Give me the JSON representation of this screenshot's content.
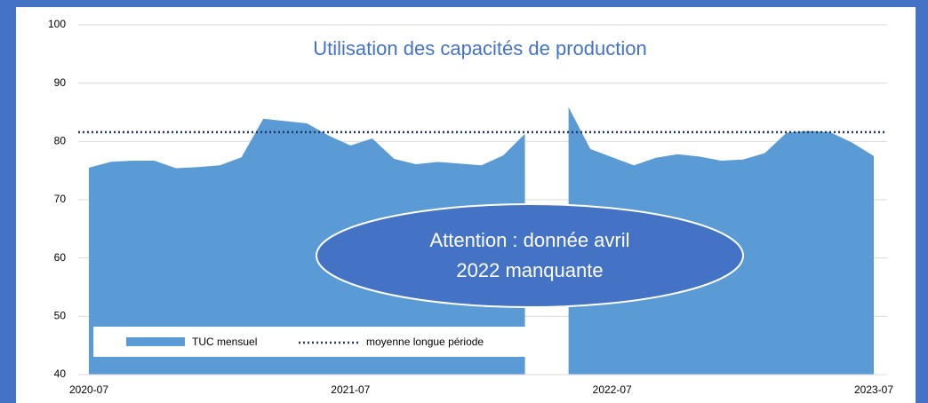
{
  "chart_data": {
    "type": "area",
    "title": "Utilisation des capacités de production",
    "categories": [
      "2020-07",
      null,
      null,
      null,
      null,
      null,
      null,
      null,
      null,
      null,
      null,
      null,
      "2021-07",
      null,
      null,
      null,
      null,
      null,
      null,
      null,
      null,
      null,
      null,
      null,
      "2022-07",
      null,
      null,
      null,
      null,
      null,
      null,
      null,
      null,
      null,
      null,
      null,
      "2023-07"
    ],
    "series": [
      {
        "name": "TUC mensuel",
        "color": "#5b9bd5",
        "values": [
          75.5,
          76.5,
          76.7,
          76.7,
          75.4,
          75.6,
          75.9,
          77.3,
          83.9,
          83.5,
          83.1,
          81.0,
          79.3,
          80.5,
          77.0,
          76.1,
          76.5,
          76.2,
          75.9,
          77.6,
          81.3,
          null,
          85.9,
          78.7,
          77.3,
          75.9,
          77.2,
          77.8,
          77.4,
          76.7,
          76.9,
          78.0,
          81.5,
          81.8,
          81.6,
          79.8,
          77.5
        ]
      }
    ],
    "reference_line": {
      "name": "moyenne longue période",
      "value": 81.6,
      "color": "#1f3864"
    },
    "annotation": "Attention : donnée avril 2022 manquante",
    "ylim": [
      40,
      100
    ],
    "yticks": [
      40,
      50,
      60,
      70,
      80,
      90,
      100
    ],
    "grid": true
  }
}
